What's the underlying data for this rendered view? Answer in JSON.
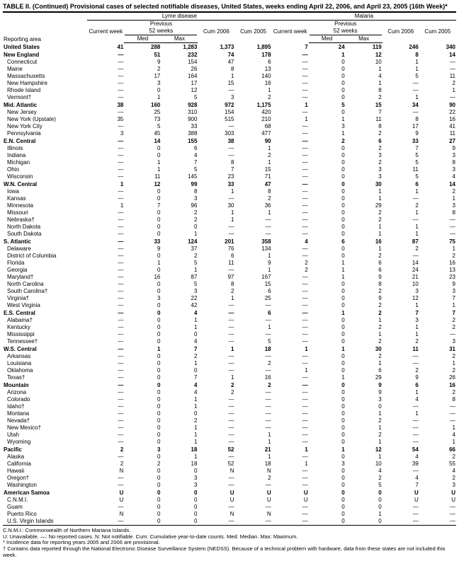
{
  "title": "TABLE II. (Continued) Provisional cases of selected notifiable diseases, United States, weeks ending April 22, 2006, and April 23, 2005 (16th Week)*",
  "diseases": [
    "Lyme disease",
    "Malaria"
  ],
  "header_labels": {
    "current_week": "Current week",
    "previous": "Previous",
    "weeks52": "52 weeks",
    "med": "Med",
    "max": "Max",
    "cum06": "Cum 2006",
    "cum05": "Cum 2005",
    "area": "Reporting area"
  },
  "rows": [
    {
      "region": true,
      "name": "United States",
      "l": [
        "41",
        "288",
        "1,283",
        "1,373",
        "1,895"
      ],
      "m": [
        "7",
        "24",
        "119",
        "246",
        "340"
      ]
    },
    {
      "region": true,
      "name": "New England",
      "l": [
        "—",
        "51",
        "232",
        "74",
        "178"
      ],
      "m": [
        "—",
        "1",
        "12",
        "8",
        "14"
      ]
    },
    {
      "name": "Connecticut",
      "l": [
        "—",
        "9",
        "154",
        "47",
        "6"
      ],
      "m": [
        "—",
        "0",
        "10",
        "1",
        "—"
      ]
    },
    {
      "name": "Maine",
      "l": [
        "—",
        "2",
        "26",
        "8",
        "13"
      ],
      "m": [
        "—",
        "0",
        "1",
        "1",
        "—"
      ]
    },
    {
      "name": "Massachusetts",
      "l": [
        "—",
        "17",
        "164",
        "1",
        "140"
      ],
      "m": [
        "—",
        "0",
        "4",
        "5",
        "11"
      ]
    },
    {
      "name": "New Hampshire",
      "l": [
        "—",
        "3",
        "17",
        "15",
        "16"
      ],
      "m": [
        "—",
        "0",
        "1",
        "—",
        "2"
      ]
    },
    {
      "name": "Rhode Island",
      "l": [
        "—",
        "0",
        "12",
        "—",
        "1"
      ],
      "m": [
        "—",
        "0",
        "8",
        "—",
        "1"
      ]
    },
    {
      "name": "Vermont†",
      "l": [
        "—",
        "1",
        "5",
        "3",
        "2"
      ],
      "m": [
        "—",
        "0",
        "2",
        "1",
        "—"
      ]
    },
    {
      "region": true,
      "name": "Mid. Atlantic",
      "l": [
        "38",
        "160",
        "928",
        "972",
        "1,175"
      ],
      "m": [
        "1",
        "5",
        "15",
        "34",
        "90"
      ]
    },
    {
      "name": "New Jersey",
      "l": [
        "—",
        "25",
        "310",
        "154",
        "420"
      ],
      "m": [
        "—",
        "0",
        "7",
        "—",
        "22"
      ]
    },
    {
      "name": "New York (Upstate)",
      "l": [
        "35",
        "73",
        "900",
        "515",
        "210"
      ],
      "m": [
        "1",
        "1",
        "11",
        "8",
        "16"
      ]
    },
    {
      "name": "New York City",
      "l": [
        "—",
        "5",
        "33",
        "—",
        "68"
      ],
      "m": [
        "—",
        "3",
        "8",
        "17",
        "41"
      ]
    },
    {
      "name": "Pennsylvania",
      "l": [
        "3",
        "45",
        "388",
        "303",
        "477"
      ],
      "m": [
        "—",
        "1",
        "2",
        "9",
        "11"
      ]
    },
    {
      "region": true,
      "name": "E.N. Central",
      "l": [
        "—",
        "14",
        "155",
        "38",
        "90"
      ],
      "m": [
        "—",
        "2",
        "6",
        "33",
        "27"
      ]
    },
    {
      "name": "Illinois",
      "l": [
        "—",
        "0",
        "6",
        "—",
        "1"
      ],
      "m": [
        "—",
        "0",
        "2",
        "7",
        "9"
      ]
    },
    {
      "name": "Indiana",
      "l": [
        "—",
        "0",
        "4",
        "—",
        "2"
      ],
      "m": [
        "—",
        "0",
        "3",
        "5",
        "3"
      ]
    },
    {
      "name": "Michigan",
      "l": [
        "—",
        "1",
        "7",
        "8",
        "1"
      ],
      "m": [
        "—",
        "0",
        "2",
        "5",
        "8"
      ]
    },
    {
      "name": "Ohio",
      "l": [
        "—",
        "1",
        "5",
        "7",
        "15"
      ],
      "m": [
        "—",
        "0",
        "3",
        "11",
        "3"
      ]
    },
    {
      "name": "Wisconsin",
      "l": [
        "—",
        "11",
        "145",
        "23",
        "71"
      ],
      "m": [
        "—",
        "0",
        "3",
        "5",
        "4"
      ]
    },
    {
      "region": true,
      "name": "W.N. Central",
      "l": [
        "1",
        "12",
        "99",
        "33",
        "47"
      ],
      "m": [
        "—",
        "0",
        "30",
        "6",
        "14"
      ]
    },
    {
      "name": "Iowa",
      "l": [
        "—",
        "0",
        "8",
        "1",
        "8"
      ],
      "m": [
        "—",
        "0",
        "1",
        "1",
        "2"
      ]
    },
    {
      "name": "Kansas",
      "l": [
        "—",
        "0",
        "3",
        "—",
        "2"
      ],
      "m": [
        "—",
        "0",
        "1",
        "—",
        "1"
      ]
    },
    {
      "name": "Minnesota",
      "l": [
        "1",
        "7",
        "96",
        "30",
        "36"
      ],
      "m": [
        "—",
        "0",
        "29",
        "2",
        "3"
      ]
    },
    {
      "name": "Missouri",
      "l": [
        "—",
        "0",
        "2",
        "1",
        "1"
      ],
      "m": [
        "—",
        "0",
        "2",
        "1",
        "8"
      ]
    },
    {
      "name": "Nebraska†",
      "l": [
        "—",
        "0",
        "2",
        "1",
        "—"
      ],
      "m": [
        "—",
        "0",
        "2",
        "—",
        "—"
      ]
    },
    {
      "name": "North Dakota",
      "l": [
        "—",
        "0",
        "0",
        "—",
        "—"
      ],
      "m": [
        "—",
        "0",
        "1",
        "1",
        "—"
      ]
    },
    {
      "name": "South Dakota",
      "l": [
        "—",
        "0",
        "1",
        "—",
        "—"
      ],
      "m": [
        "—",
        "0",
        "1",
        "1",
        "—"
      ]
    },
    {
      "region": true,
      "name": "S. Atlantic",
      "l": [
        "—",
        "33",
        "124",
        "201",
        "358"
      ],
      "m": [
        "4",
        "6",
        "16",
        "87",
        "75"
      ]
    },
    {
      "name": "Delaware",
      "l": [
        "—",
        "9",
        "37",
        "76",
        "134"
      ],
      "m": [
        "—",
        "0",
        "1",
        "2",
        "1"
      ]
    },
    {
      "name": "District of Columbia",
      "l": [
        "—",
        "0",
        "2",
        "6",
        "1"
      ],
      "m": [
        "—",
        "0",
        "2",
        "—",
        "2"
      ]
    },
    {
      "name": "Florida",
      "l": [
        "—",
        "1",
        "5",
        "11",
        "9"
      ],
      "m": [
        "2",
        "1",
        "6",
        "14",
        "16"
      ]
    },
    {
      "name": "Georgia",
      "l": [
        "—",
        "0",
        "1",
        "—",
        "1"
      ],
      "m": [
        "2",
        "1",
        "6",
        "24",
        "13"
      ]
    },
    {
      "name": "Maryland†",
      "l": [
        "—",
        "16",
        "87",
        "97",
        "167"
      ],
      "m": [
        "—",
        "1",
        "9",
        "21",
        "23"
      ]
    },
    {
      "name": "North Carolina",
      "l": [
        "—",
        "0",
        "5",
        "8",
        "15"
      ],
      "m": [
        "—",
        "0",
        "8",
        "10",
        "9"
      ]
    },
    {
      "name": "South Carolina†",
      "l": [
        "—",
        "0",
        "3",
        "2",
        "6"
      ],
      "m": [
        "—",
        "0",
        "2",
        "3",
        "3"
      ]
    },
    {
      "name": "Virginia†",
      "l": [
        "—",
        "3",
        "22",
        "1",
        "25"
      ],
      "m": [
        "—",
        "0",
        "9",
        "12",
        "7"
      ]
    },
    {
      "name": "West Virginia",
      "l": [
        "—",
        "0",
        "42",
        "—",
        "—"
      ],
      "m": [
        "—",
        "0",
        "2",
        "1",
        "1"
      ]
    },
    {
      "region": true,
      "name": "E.S. Central",
      "l": [
        "—",
        "0",
        "4",
        "—",
        "6"
      ],
      "m": [
        "—",
        "1",
        "2",
        "7",
        "7"
      ]
    },
    {
      "name": "Alabama†",
      "l": [
        "—",
        "0",
        "1",
        "—",
        "—"
      ],
      "m": [
        "—",
        "0",
        "1",
        "3",
        "2"
      ]
    },
    {
      "name": "Kentucky",
      "l": [
        "—",
        "0",
        "1",
        "—",
        "1"
      ],
      "m": [
        "—",
        "0",
        "2",
        "1",
        "2"
      ]
    },
    {
      "name": "Mississippi",
      "l": [
        "—",
        "0",
        "0",
        "—",
        "—"
      ],
      "m": [
        "—",
        "0",
        "1",
        "1",
        "—"
      ]
    },
    {
      "name": "Tennessee†",
      "l": [
        "—",
        "0",
        "4",
        "—",
        "5"
      ],
      "m": [
        "—",
        "0",
        "2",
        "2",
        "3"
      ]
    },
    {
      "region": true,
      "name": "W.S. Central",
      "l": [
        "—",
        "1",
        "7",
        "1",
        "18"
      ],
      "m": [
        "1",
        "1",
        "30",
        "11",
        "31"
      ]
    },
    {
      "name": "Arkansas",
      "l": [
        "—",
        "0",
        "2",
        "—",
        "—"
      ],
      "m": [
        "—",
        "0",
        "2",
        "—",
        "2"
      ]
    },
    {
      "name": "Louisiana",
      "l": [
        "—",
        "0",
        "1",
        "—",
        "2"
      ],
      "m": [
        "—",
        "0",
        "1",
        "—",
        "1"
      ]
    },
    {
      "name": "Oklahoma",
      "l": [
        "—",
        "0",
        "0",
        "—",
        "—"
      ],
      "m": [
        "1",
        "0",
        "6",
        "2",
        "2"
      ]
    },
    {
      "name": "Texas†",
      "l": [
        "—",
        "0",
        "7",
        "1",
        "16"
      ],
      "m": [
        "—",
        "1",
        "29",
        "9",
        "26"
      ]
    },
    {
      "region": true,
      "name": "Mountain",
      "l": [
        "—",
        "0",
        "4",
        "2",
        "2"
      ],
      "m": [
        "—",
        "0",
        "9",
        "6",
        "16"
      ]
    },
    {
      "name": "Arizona",
      "l": [
        "—",
        "0",
        "4",
        "2",
        "—"
      ],
      "m": [
        "—",
        "0",
        "9",
        "1",
        "2"
      ]
    },
    {
      "name": "Colorado",
      "l": [
        "—",
        "0",
        "1",
        "—",
        "—"
      ],
      "m": [
        "—",
        "0",
        "3",
        "4",
        "8"
      ]
    },
    {
      "name": "Idaho†",
      "l": [
        "—",
        "0",
        "1",
        "—",
        "—"
      ],
      "m": [
        "—",
        "0",
        "0",
        "—",
        "—"
      ]
    },
    {
      "name": "Montana",
      "l": [
        "—",
        "0",
        "0",
        "—",
        "—"
      ],
      "m": [
        "—",
        "0",
        "1",
        "1",
        "—"
      ]
    },
    {
      "name": "Nevada†",
      "l": [
        "—",
        "0",
        "2",
        "—",
        "—"
      ],
      "m": [
        "—",
        "0",
        "2",
        "—",
        "—"
      ]
    },
    {
      "name": "New Mexico†",
      "l": [
        "—",
        "0",
        "1",
        "—",
        "—"
      ],
      "m": [
        "—",
        "0",
        "1",
        "—",
        "1"
      ]
    },
    {
      "name": "Utah",
      "l": [
        "—",
        "0",
        "1",
        "—",
        "1"
      ],
      "m": [
        "—",
        "0",
        "2",
        "—",
        "4"
      ]
    },
    {
      "name": "Wyoming",
      "l": [
        "—",
        "0",
        "1",
        "—",
        "1"
      ],
      "m": [
        "—",
        "0",
        "1",
        "—",
        "1"
      ]
    },
    {
      "region": true,
      "name": "Pacific",
      "l": [
        "2",
        "3",
        "18",
        "52",
        "21"
      ],
      "m": [
        "1",
        "1",
        "12",
        "54",
        "66"
      ]
    },
    {
      "name": "Alaska",
      "l": [
        "—",
        "0",
        "1",
        "—",
        "1"
      ],
      "m": [
        "—",
        "0",
        "1",
        "4",
        "2"
      ]
    },
    {
      "name": "California",
      "l": [
        "2",
        "2",
        "18",
        "52",
        "18"
      ],
      "m": [
        "1",
        "3",
        "10",
        "39",
        "55"
      ]
    },
    {
      "name": "Hawaii",
      "l": [
        "N",
        "0",
        "0",
        "N",
        "N"
      ],
      "m": [
        "—",
        "0",
        "4",
        "—",
        "4"
      ]
    },
    {
      "name": "Oregon†",
      "l": [
        "—",
        "0",
        "3",
        "—",
        "2"
      ],
      "m": [
        "—",
        "0",
        "2",
        "4",
        "2"
      ]
    },
    {
      "name": "Washington",
      "l": [
        "—",
        "0",
        "3",
        "—",
        "—"
      ],
      "m": [
        "—",
        "0",
        "5",
        "7",
        "3"
      ]
    },
    {
      "region": true,
      "name": "American Samoa",
      "l": [
        "U",
        "0",
        "0",
        "U",
        "U"
      ],
      "m": [
        "U",
        "0",
        "0",
        "U",
        "U"
      ]
    },
    {
      "name": "C.N.M.I.",
      "l": [
        "U",
        "0",
        "0",
        "U",
        "U"
      ],
      "m": [
        "U",
        "0",
        "0",
        "U",
        "U"
      ]
    },
    {
      "name": "Guam",
      "l": [
        "—",
        "0",
        "0",
        "—",
        "—"
      ],
      "m": [
        "—",
        "0",
        "0",
        "—",
        "—"
      ]
    },
    {
      "name": "Puerto Rico",
      "l": [
        "N",
        "0",
        "0",
        "N",
        "N"
      ],
      "m": [
        "—",
        "0",
        "1",
        "—",
        "—"
      ]
    },
    {
      "name": "U.S. Virgin Islands",
      "l": [
        "—",
        "0",
        "0",
        "—",
        "—"
      ],
      "m": [
        "—",
        "0",
        "0",
        "—",
        "—"
      ]
    }
  ],
  "footnotes": [
    "C.N.M.I.: Commonwealth of Northern Mariana Islands.",
    "U: Unavailable.        —: No reported cases.        N: Not notifiable.        Cum: Cumulative year-to-date counts.        Med: Median.        Max: Maximum.",
    "* Incidence data for reporting years 2005 and 2006 are provisional.",
    "† Contains data reported through the National Electronic Disease Surveillance System (NEDSS). Because of a technical problem with hardware, data from these states are not included this week."
  ]
}
